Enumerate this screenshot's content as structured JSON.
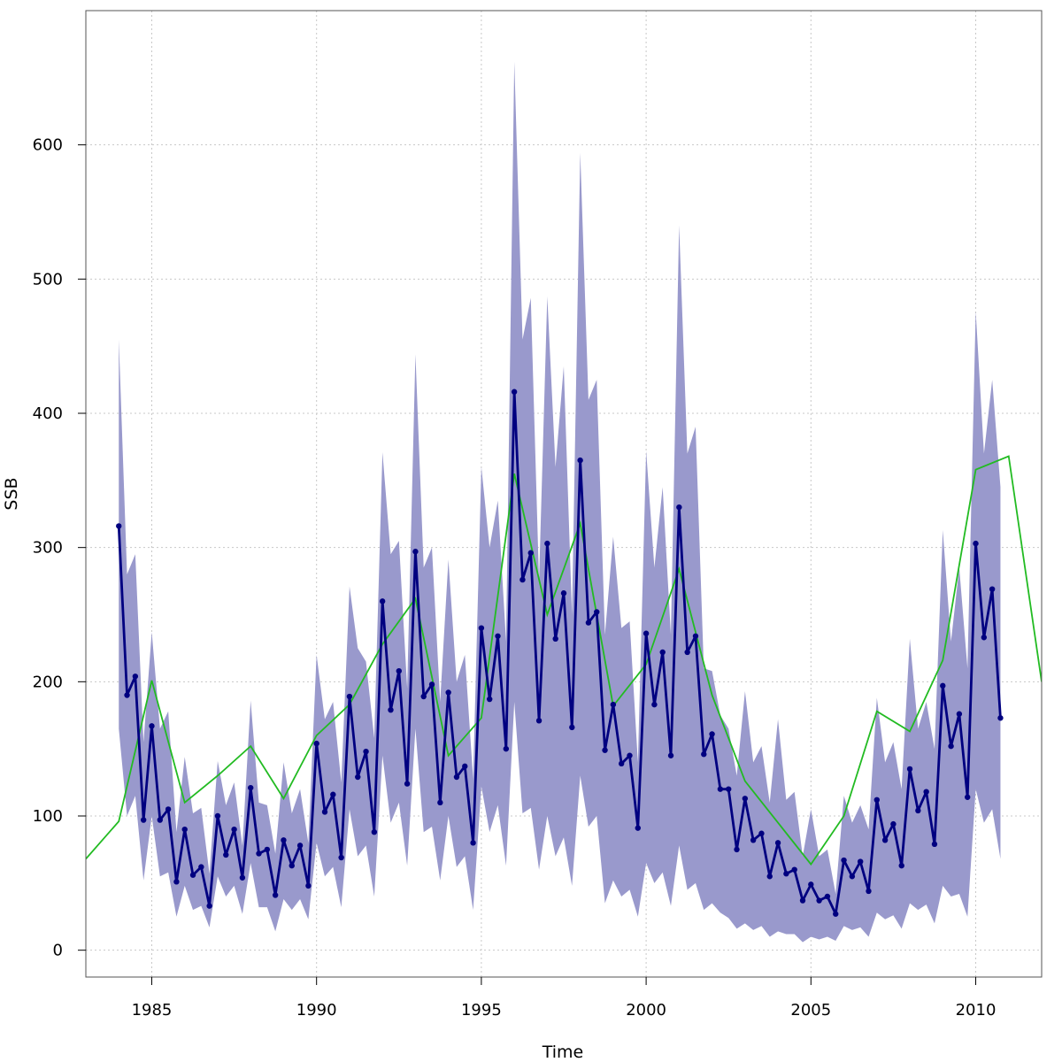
{
  "chart_data": {
    "type": "line",
    "xlabel": "Time",
    "ylabel": "SSB",
    "xlim": [
      1983,
      2012
    ],
    "ylim": [
      -20,
      700
    ],
    "grid": true,
    "x_ticks": [
      1985,
      1990,
      1995,
      2000,
      2005,
      2010
    ],
    "x_tick_labels": [
      "1985",
      "1990",
      "1995",
      "2000",
      "2005",
      "2010"
    ],
    "y_ticks": [
      0,
      100,
      200,
      300,
      400,
      500,
      600
    ],
    "y_tick_labels": [
      "0",
      "100",
      "200",
      "300",
      "400",
      "500",
      "600"
    ],
    "colors": {
      "ci_band": "#9999cc",
      "estimate": "#000080",
      "survey": "#22bb22",
      "grid": "#c8c8c8",
      "frame": "#555555"
    },
    "series": [
      {
        "kind": "interval_band",
        "x": [
          1984,
          1984.25,
          1984.5,
          1984.75,
          1985,
          1985.25,
          1985.5,
          1985.75,
          1986,
          1986.25,
          1986.5,
          1986.75,
          1987,
          1987.25,
          1987.5,
          1987.75,
          1988,
          1988.25,
          1988.5,
          1988.75,
          1989,
          1989.25,
          1989.5,
          1989.75,
          1990,
          1990.25,
          1990.5,
          1990.75,
          1991,
          1991.25,
          1991.5,
          1991.75,
          1992,
          1992.25,
          1992.5,
          1992.75,
          1993,
          1993.25,
          1993.5,
          1993.75,
          1994,
          1994.25,
          1994.5,
          1994.75,
          1995,
          1995.25,
          1995.5,
          1995.75,
          1996,
          1996.25,
          1996.5,
          1996.75,
          1997,
          1997.25,
          1997.5,
          1997.75,
          1998,
          1998.25,
          1998.5,
          1998.75,
          1999,
          1999.25,
          1999.5,
          1999.75,
          2000,
          2000.25,
          2000.5,
          2000.75,
          2001,
          2001.25,
          2001.5,
          2001.75,
          2002,
          2002.25,
          2002.5,
          2002.75,
          2003,
          2003.25,
          2003.5,
          2003.75,
          2004,
          2004.25,
          2004.5,
          2004.75,
          2005,
          2005.25,
          2005.5,
          2005.75,
          2006,
          2006.25,
          2006.5,
          2006.75,
          2007,
          2007.25,
          2007.5,
          2007.75,
          2008,
          2008.25,
          2008.5,
          2008.75,
          2009,
          2009.25,
          2009.5,
          2009.75,
          2010,
          2010.25,
          2010.5,
          2010.75
        ],
        "lower": [
          165,
          100,
          115,
          52,
          100,
          55,
          58,
          25,
          48,
          30,
          33,
          17,
          55,
          40,
          48,
          27,
          65,
          32,
          32,
          14,
          38,
          30,
          38,
          23,
          80,
          55,
          62,
          32,
          105,
          70,
          78,
          40,
          145,
          95,
          110,
          63,
          165,
          88,
          92,
          52,
          100,
          62,
          70,
          30,
          122,
          88,
          108,
          63,
          185,
          102,
          106,
          60,
          100,
          70,
          84,
          48,
          130,
          92,
          100,
          35,
          52,
          40,
          45,
          25,
          65,
          50,
          58,
          33,
          78,
          45,
          50,
          30,
          35,
          28,
          24,
          16,
          20,
          15,
          18,
          10,
          14,
          12,
          12,
          6,
          10,
          8,
          10,
          7,
          18,
          15,
          17,
          10,
          28,
          23,
          26,
          16,
          35,
          30,
          34,
          20,
          48,
          40,
          42,
          25,
          120,
          95,
          105,
          68
        ],
        "upper": [
          455,
          280,
          295,
          155,
          237,
          165,
          178,
          88,
          144,
          102,
          106,
          57,
          141,
          108,
          125,
          78,
          186,
          110,
          108,
          72,
          140,
          102,
          120,
          80,
          220,
          172,
          185,
          125,
          271,
          225,
          215,
          158,
          371,
          295,
          305,
          195,
          444,
          285,
          300,
          185,
          291,
          200,
          220,
          128,
          360,
          300,
          335,
          230,
          662,
          455,
          486,
          275,
          487,
          360,
          435,
          250,
          594,
          410,
          425,
          235,
          308,
          240,
          245,
          140,
          372,
          285,
          345,
          235,
          540,
          370,
          390,
          210,
          208,
          175,
          165,
          130,
          193,
          140,
          152,
          110,
          172,
          112,
          118,
          70,
          105,
          70,
          75,
          42,
          115,
          95,
          108,
          90,
          188,
          140,
          155,
          120,
          232,
          165,
          185,
          150,
          313,
          230,
          285,
          210,
          476,
          370,
          425,
          345
        ]
      },
      {
        "kind": "estimate",
        "x": [
          1984,
          1984.25,
          1984.5,
          1984.75,
          1985,
          1985.25,
          1985.5,
          1985.75,
          1986,
          1986.25,
          1986.5,
          1986.75,
          1987,
          1987.25,
          1987.5,
          1987.75,
          1988,
          1988.25,
          1988.5,
          1988.75,
          1989,
          1989.25,
          1989.5,
          1989.75,
          1990,
          1990.25,
          1990.5,
          1990.75,
          1991,
          1991.25,
          1991.5,
          1991.75,
          1992,
          1992.25,
          1992.5,
          1992.75,
          1993,
          1993.25,
          1993.5,
          1993.75,
          1994,
          1994.25,
          1994.5,
          1994.75,
          1995,
          1995.25,
          1995.5,
          1995.75,
          1996,
          1996.25,
          1996.5,
          1996.75,
          1997,
          1997.25,
          1997.5,
          1997.75,
          1998,
          1998.25,
          1998.5,
          1998.75,
          1999,
          1999.25,
          1999.5,
          1999.75,
          2000,
          2000.25,
          2000.5,
          2000.75,
          2001,
          2001.25,
          2001.5,
          2001.75,
          2002,
          2002.25,
          2002.5,
          2002.75,
          2003,
          2003.25,
          2003.5,
          2003.75,
          2004,
          2004.25,
          2004.5,
          2004.75,
          2005,
          2005.25,
          2005.5,
          2005.75,
          2006,
          2006.25,
          2006.5,
          2006.75,
          2007,
          2007.25,
          2007.5,
          2007.75,
          2008,
          2008.25,
          2008.5,
          2008.75,
          2009,
          2009.25,
          2009.5,
          2009.75,
          2010,
          2010.25,
          2010.5,
          2010.75
        ],
        "y": [
          316,
          190,
          204,
          97,
          167,
          97,
          105,
          51,
          90,
          56,
          62,
          33,
          100,
          71,
          90,
          54,
          121,
          72,
          75,
          41,
          82,
          63,
          78,
          48,
          154,
          103,
          116,
          69,
          189,
          129,
          148,
          88,
          260,
          179,
          208,
          124,
          297,
          189,
          198,
          110,
          192,
          129,
          137,
          80,
          240,
          187,
          234,
          150,
          416,
          276,
          296,
          171,
          303,
          232,
          266,
          166,
          365,
          244,
          252,
          149,
          183,
          139,
          145,
          91,
          236,
          183,
          222,
          145,
          330,
          222,
          234,
          146,
          161,
          120,
          120,
          75,
          113,
          82,
          87,
          55,
          80,
          57,
          60,
          37,
          49,
          37,
          40,
          27,
          67,
          55,
          66,
          44,
          112,
          82,
          94,
          63,
          135,
          104,
          118,
          79,
          197,
          152,
          176,
          114,
          303,
          233,
          269,
          173
        ]
      },
      {
        "kind": "survey",
        "x": [
          1983,
          1984,
          1985,
          1986,
          1987,
          1988,
          1989,
          1990,
          1991,
          1992,
          1993,
          1994,
          1995,
          1996,
          1997,
          1998,
          1999,
          2000,
          2001,
          2002,
          2003,
          2004,
          2005,
          2006,
          2007,
          2008,
          2009,
          2010,
          2011,
          2012
        ],
        "y": [
          68,
          96,
          201,
          110,
          130,
          152,
          113,
          160,
          183,
          228,
          262,
          145,
          173,
          355,
          250,
          318,
          182,
          213,
          284,
          190,
          126,
          95,
          64,
          100,
          178,
          163,
          216,
          358,
          368,
          200
        ]
      }
    ]
  }
}
